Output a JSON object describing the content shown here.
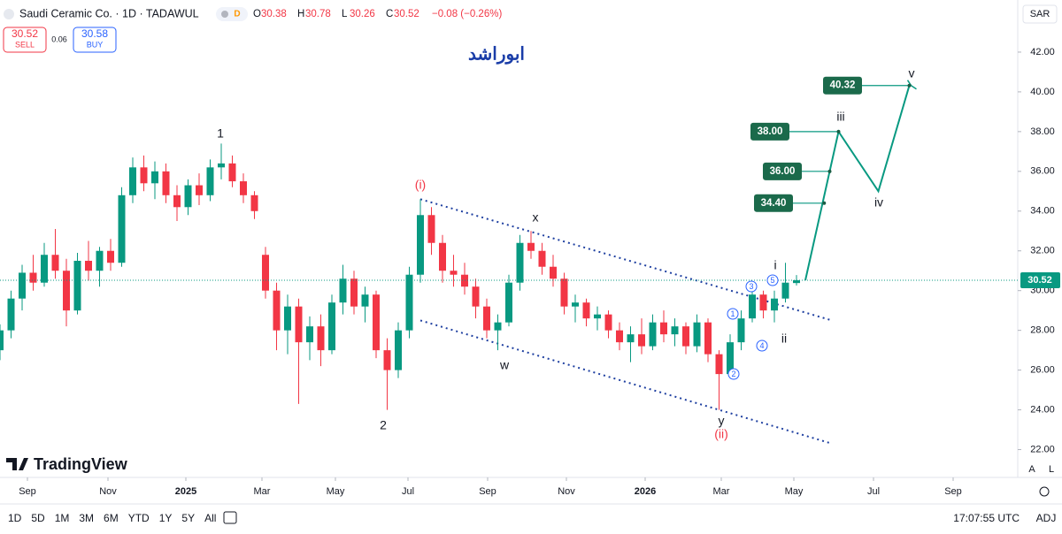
{
  "ui": {
    "symbol": "Saudi Ceramic Co. · 1D · TADAWUL",
    "badge": "D",
    "ohlc_labels": [
      "O",
      "H",
      "L",
      "C"
    ],
    "change": "−0.08 (−0.26%)",
    "sell_label": "SELL",
    "buy_label": "BUY",
    "spread": "0.06",
    "buy": "30.58",
    "currency": "SAR",
    "brand": "TradingView",
    "ranges": [
      "1D",
      "5D",
      "1M",
      "3M",
      "6M",
      "YTD",
      "1Y",
      "5Y",
      "All"
    ],
    "clock": "17:07:55 UTC",
    "adj": "ADJ",
    "scale_a": "A",
    "scale_l": "L"
  },
  "chart_data": {
    "type": "candlestick",
    "title": "ابوراشد",
    "up_color": "#089981",
    "down_color": "#f23645",
    "ohlc": [
      [
        27.0,
        28.3,
        26.5,
        28.0
      ],
      [
        28.0,
        30.0,
        27.6,
        29.6
      ],
      [
        29.6,
        31.3,
        29.0,
        30.9
      ],
      [
        30.9,
        31.8,
        30.0,
        30.4
      ],
      [
        30.4,
        32.4,
        30.2,
        31.8
      ],
      [
        31.8,
        33.1,
        30.6,
        31.0
      ],
      [
        31.0,
        31.6,
        28.2,
        29.0
      ],
      [
        29.0,
        31.9,
        28.8,
        31.5
      ],
      [
        31.5,
        32.5,
        30.5,
        31.0
      ],
      [
        31.0,
        32.2,
        30.2,
        32.0
      ],
      [
        32.0,
        32.6,
        31.0,
        31.4
      ],
      [
        31.4,
        35.2,
        31.2,
        34.8
      ],
      [
        34.8,
        36.7,
        34.4,
        36.2
      ],
      [
        36.2,
        36.8,
        35.0,
        35.4
      ],
      [
        35.4,
        36.5,
        34.6,
        36.0
      ],
      [
        36.0,
        36.4,
        34.4,
        34.8
      ],
      [
        34.8,
        35.3,
        33.5,
        34.2
      ],
      [
        34.2,
        35.6,
        33.8,
        35.3
      ],
      [
        35.3,
        35.9,
        34.3,
        34.8
      ],
      [
        34.8,
        36.6,
        34.5,
        36.2
      ],
      [
        36.2,
        37.4,
        35.6,
        36.4
      ],
      [
        36.4,
        36.8,
        35.2,
        35.5
      ],
      [
        35.5,
        35.9,
        34.4,
        34.8
      ],
      [
        34.8,
        35.0,
        33.6,
        34.0
      ],
      [
        31.8,
        32.2,
        29.6,
        30.0
      ],
      [
        30.0,
        30.4,
        27.0,
        28.0
      ],
      [
        28.0,
        29.8,
        26.8,
        29.2
      ],
      [
        29.2,
        29.6,
        24.3,
        27.4
      ],
      [
        27.4,
        28.7,
        26.5,
        28.2
      ],
      [
        28.2,
        28.8,
        26.2,
        27.0
      ],
      [
        27.0,
        29.8,
        26.8,
        29.4
      ],
      [
        29.4,
        31.3,
        28.8,
        30.6
      ],
      [
        30.6,
        31.0,
        28.8,
        29.2
      ],
      [
        29.2,
        30.2,
        28.4,
        29.8
      ],
      [
        29.8,
        30.0,
        26.6,
        27.0
      ],
      [
        27.0,
        27.6,
        24.0,
        26.0
      ],
      [
        26.0,
        28.4,
        25.6,
        28.0
      ],
      [
        28.0,
        31.2,
        27.6,
        30.8
      ],
      [
        30.8,
        34.6,
        30.4,
        33.8
      ],
      [
        33.8,
        34.2,
        31.8,
        32.4
      ],
      [
        32.4,
        32.8,
        30.4,
        31.0
      ],
      [
        31.0,
        31.8,
        30.2,
        30.8
      ],
      [
        30.8,
        31.4,
        29.8,
        30.2
      ],
      [
        30.2,
        30.6,
        28.6,
        29.2
      ],
      [
        29.2,
        29.6,
        27.6,
        28.0
      ],
      [
        28.0,
        28.8,
        27.0,
        28.4
      ],
      [
        28.4,
        30.8,
        28.2,
        30.4
      ],
      [
        30.4,
        32.8,
        30.0,
        32.4
      ],
      [
        32.4,
        33.0,
        31.6,
        32.0
      ],
      [
        32.0,
        32.4,
        30.8,
        31.2
      ],
      [
        31.2,
        31.8,
        30.2,
        30.6
      ],
      [
        30.6,
        30.9,
        28.8,
        29.2
      ],
      [
        29.2,
        29.8,
        28.4,
        29.4
      ],
      [
        29.4,
        29.6,
        28.2,
        28.6
      ],
      [
        28.6,
        29.2,
        28.0,
        28.8
      ],
      [
        28.8,
        29.0,
        27.6,
        28.0
      ],
      [
        28.0,
        28.4,
        27.0,
        27.4
      ],
      [
        27.4,
        28.2,
        26.4,
        27.8
      ],
      [
        27.8,
        28.6,
        26.8,
        27.2
      ],
      [
        27.2,
        28.8,
        27.0,
        28.4
      ],
      [
        28.4,
        29.0,
        27.4,
        27.8
      ],
      [
        27.8,
        28.6,
        27.2,
        28.2
      ],
      [
        28.2,
        28.4,
        26.8,
        27.2
      ],
      [
        27.2,
        28.8,
        26.9,
        28.4
      ],
      [
        28.4,
        28.6,
        26.4,
        26.8
      ],
      [
        26.8,
        27.0,
        24.0,
        25.8
      ],
      [
        25.8,
        27.8,
        25.6,
        27.4
      ],
      [
        27.4,
        29.0,
        27.0,
        28.6
      ],
      [
        28.6,
        30.2,
        28.4,
        29.8
      ],
      [
        29.8,
        30.0,
        28.6,
        29.0
      ],
      [
        29.0,
        30.0,
        28.4,
        29.6
      ],
      [
        29.6,
        31.4,
        29.4,
        30.4
      ],
      [
        30.38,
        30.78,
        30.26,
        30.52
      ]
    ],
    "xlim": [
      0,
      92
    ],
    "ylim": [
      20.6,
      44.4
    ],
    "xticks": [
      {
        "value": 2.48,
        "label": "Sep"
      },
      {
        "value": 9.76,
        "label": "Nov"
      },
      {
        "value": 16.8,
        "label": "2025"
      },
      {
        "value": 23.68,
        "label": "Mar"
      },
      {
        "value": 30.32,
        "label": "May"
      },
      {
        "value": 36.88,
        "label": "Jul"
      },
      {
        "value": 44.08,
        "label": "Sep"
      },
      {
        "value": 51.2,
        "label": "Nov"
      },
      {
        "value": 58.32,
        "label": "2026"
      },
      {
        "value": 65.2,
        "label": "Mar"
      },
      {
        "value": 71.76,
        "label": "May"
      },
      {
        "value": 78.96,
        "label": "Jul"
      },
      {
        "value": 86.16,
        "label": "Sep"
      }
    ],
    "yticks": [
      {
        "value": 42,
        "label": "42.00"
      },
      {
        "value": 40,
        "label": "40.00"
      },
      {
        "value": 38,
        "label": "38.00"
      },
      {
        "value": 36,
        "label": "36.00"
      },
      {
        "value": 34,
        "label": "34.00"
      },
      {
        "value": 32,
        "label": "32.00"
      },
      {
        "value": 30,
        "label": "30.00"
      },
      {
        "value": 28,
        "label": "28.00"
      },
      {
        "value": 26,
        "label": "26.00"
      },
      {
        "value": 24,
        "label": "24.00"
      },
      {
        "value": 22,
        "label": "22.00"
      }
    ],
    "trendlines": [
      {
        "x": [
          38,
          75.2
        ],
        "y": [
          34.6,
          28.5
        ]
      },
      {
        "x": [
          38,
          75.2
        ],
        "y": [
          28.5,
          22.3
        ]
      }
    ],
    "projection": {
      "color": "#089981",
      "x": [
        72.8,
        75.8,
        79.4,
        82.2
      ],
      "y": [
        30.52,
        38,
        35,
        40.32
      ]
    },
    "targets": [
      {
        "x": 74.5,
        "value": 34.4,
        "label": "34.40"
      },
      {
        "x": 75,
        "value": 36,
        "label": "36.00"
      },
      {
        "x": 75.8,
        "value": 38,
        "label": "38.00"
      },
      {
        "x": 82.2,
        "value": 40.32,
        "label": "40.32"
      }
    ],
    "annotations": [
      {
        "text": "1",
        "color": "#131722"
      },
      {
        "text": "2",
        "color": "#131722"
      },
      {
        "text": "(i)",
        "color": "#f23645"
      },
      {
        "text": "x",
        "color": "#131722"
      },
      {
        "text": "w",
        "color": "#131722"
      },
      {
        "text": "y",
        "color": "#131722"
      },
      {
        "text": "(ii)",
        "color": "#f23645"
      },
      {
        "text": "i",
        "color": "#131722"
      },
      {
        "text": "ii",
        "color": "#131722"
      },
      {
        "text": "iii",
        "color": "#131722"
      },
      {
        "text": "iv",
        "color": "#131722"
      },
      {
        "text": "v",
        "color": "#131722"
      },
      {
        "text": "1",
        "color": "#2962ff"
      },
      {
        "text": "2",
        "color": "#2962ff"
      },
      {
        "text": "3",
        "color": "#2962ff"
      },
      {
        "text": "4",
        "color": "#2962ff"
      },
      {
        "text": "5",
        "color": "#2962ff"
      }
    ]
  }
}
